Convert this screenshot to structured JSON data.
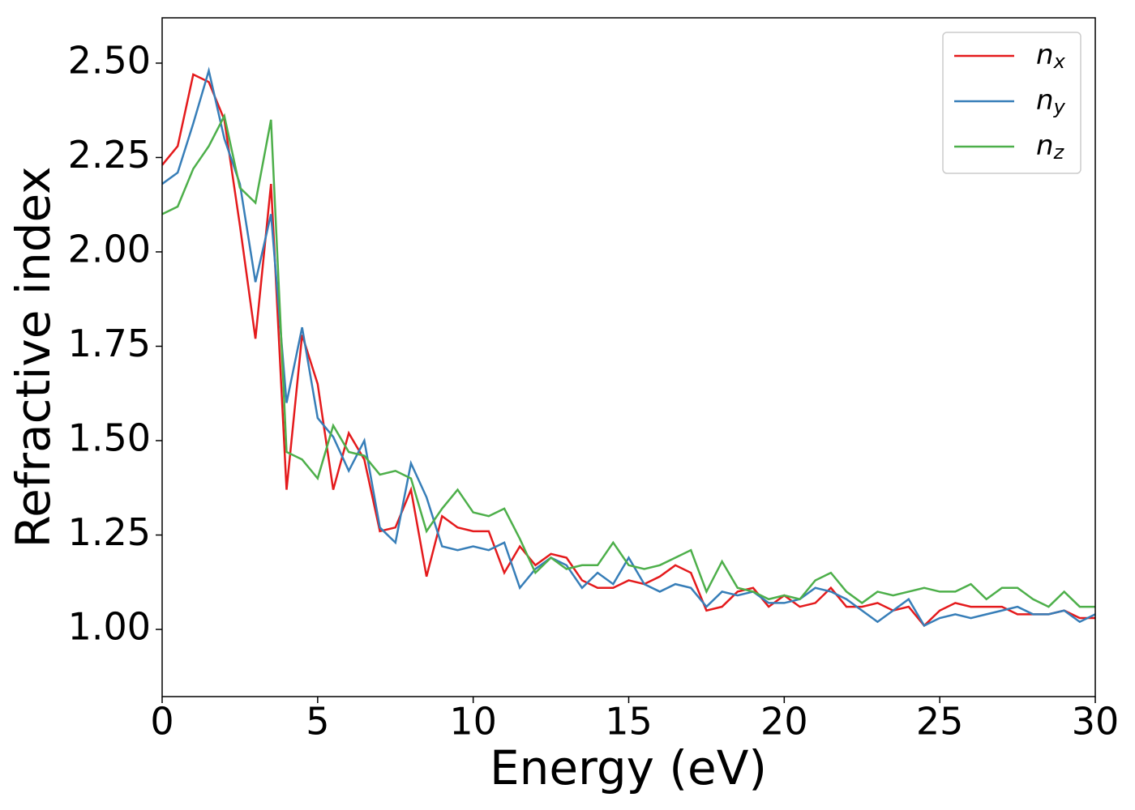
{
  "chart_data": {
    "type": "line",
    "xlabel": "Energy (eV)",
    "ylabel": "Refractive index",
    "x": [
      0,
      0.5,
      1,
      1.5,
      2,
      2.5,
      3,
      3.5,
      4,
      4.5,
      5,
      5.5,
      6,
      6.5,
      7,
      7.5,
      8,
      8.5,
      9,
      9.5,
      10,
      10.5,
      11,
      11.5,
      12,
      12.5,
      13,
      13.5,
      14,
      14.5,
      15,
      15.5,
      16,
      16.5,
      17,
      17.5,
      18,
      18.5,
      19,
      19.5,
      20,
      20.5,
      21,
      21.5,
      22,
      22.5,
      23,
      23.5,
      24,
      24.5,
      25,
      25.5,
      26,
      26.5,
      27,
      27.5,
      28,
      28.5,
      29,
      29.5,
      30
    ],
    "series": [
      {
        "name": "nx",
        "color": "#e41a1c",
        "values": [
          2.23,
          2.28,
          2.47,
          2.45,
          2.35,
          2.07,
          1.77,
          2.18,
          1.37,
          1.78,
          1.65,
          1.37,
          1.52,
          1.45,
          1.26,
          1.27,
          1.37,
          1.14,
          1.3,
          1.27,
          1.26,
          1.26,
          1.15,
          1.22,
          1.17,
          1.2,
          1.19,
          1.13,
          1.11,
          1.11,
          1.13,
          1.12,
          1.14,
          1.17,
          1.15,
          1.05,
          1.06,
          1.1,
          1.11,
          1.06,
          1.09,
          1.06,
          1.07,
          1.11,
          1.06,
          1.06,
          1.07,
          1.05,
          1.06,
          1.01,
          1.05,
          1.07,
          1.06,
          1.06,
          1.06,
          1.04,
          1.04,
          1.04,
          1.05,
          1.03,
          1.03
        ]
      },
      {
        "name": "ny",
        "color": "#377eb8",
        "values": [
          2.18,
          2.21,
          2.34,
          2.48,
          2.3,
          2.18,
          1.92,
          2.1,
          1.6,
          1.8,
          1.56,
          1.51,
          1.42,
          1.5,
          1.27,
          1.23,
          1.44,
          1.35,
          1.22,
          1.21,
          1.22,
          1.21,
          1.23,
          1.11,
          1.16,
          1.19,
          1.17,
          1.11,
          1.15,
          1.12,
          1.19,
          1.12,
          1.1,
          1.12,
          1.11,
          1.06,
          1.1,
          1.09,
          1.1,
          1.07,
          1.07,
          1.08,
          1.11,
          1.1,
          1.08,
          1.05,
          1.02,
          1.05,
          1.08,
          1.01,
          1.03,
          1.04,
          1.03,
          1.04,
          1.05,
          1.06,
          1.04,
          1.04,
          1.05,
          1.02,
          1.04
        ]
      },
      {
        "name": "nz",
        "color": "#4daf4a",
        "values": [
          2.1,
          2.12,
          2.22,
          2.28,
          2.36,
          2.17,
          2.13,
          2.35,
          1.47,
          1.45,
          1.4,
          1.54,
          1.47,
          1.46,
          1.41,
          1.42,
          1.4,
          1.26,
          1.32,
          1.37,
          1.31,
          1.3,
          1.32,
          1.24,
          1.15,
          1.19,
          1.16,
          1.17,
          1.17,
          1.23,
          1.17,
          1.16,
          1.17,
          1.19,
          1.21,
          1.1,
          1.18,
          1.11,
          1.1,
          1.08,
          1.09,
          1.08,
          1.13,
          1.15,
          1.1,
          1.07,
          1.1,
          1.09,
          1.1,
          1.11,
          1.1,
          1.1,
          1.12,
          1.08,
          1.11,
          1.11,
          1.08,
          1.06,
          1.1,
          1.06,
          1.06
        ]
      }
    ],
    "xlim": [
      0,
      30
    ],
    "xticks": [
      0,
      5,
      10,
      15,
      20,
      25,
      30
    ],
    "ylim": [
      0.822,
      2.62
    ],
    "yticks": [
      {
        "value": 1,
        "label": "1.00"
      },
      {
        "value": 1.25,
        "label": "1.25"
      },
      {
        "value": 1.5,
        "label": "1.50"
      },
      {
        "value": 1.75,
        "label": "1.75"
      },
      {
        "value": 2,
        "label": "2.00"
      },
      {
        "value": 2.25,
        "label": "2.25"
      },
      {
        "value": 2.5,
        "label": "2.50"
      }
    ],
    "legend": "upper right",
    "grid": false
  }
}
